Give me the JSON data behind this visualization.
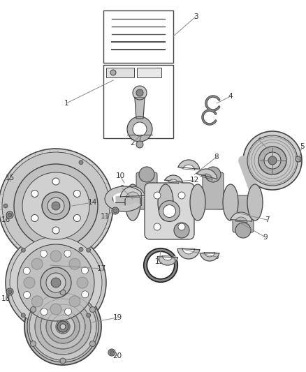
{
  "background_color": "#ffffff",
  "line_color": "#444444",
  "label_color": "#333333",
  "fig_w": 4.38,
  "fig_h": 5.33,
  "dpi": 100
}
